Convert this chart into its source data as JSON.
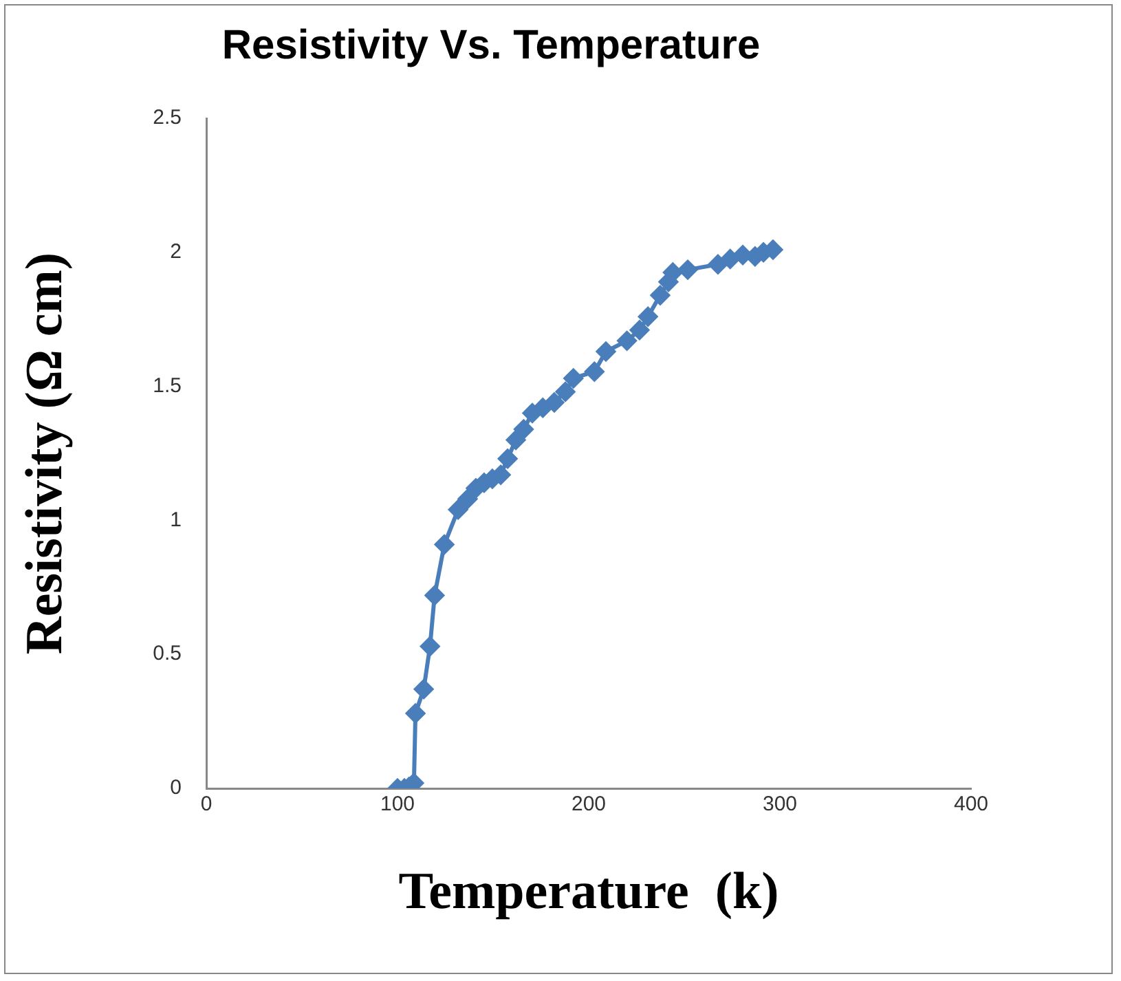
{
  "chart_data": {
    "type": "line",
    "title": "Resistivity Vs. Temperature",
    "xlabel": "Temperature  (k)",
    "ylabel": "Resistivity (Ω cm)",
    "xlim": [
      0,
      400
    ],
    "xticks": [
      0,
      100,
      200,
      300,
      400
    ],
    "ylim": [
      0,
      2.5
    ],
    "yticks": [
      0,
      0.5,
      1,
      1.5,
      2,
      2.5
    ],
    "marker": "diamond",
    "line_style": "solid",
    "series": [
      {
        "color": "#4a7ebb",
        "x": [
          100,
          103.6,
          106,
          108.6,
          109.4,
          113.7,
          117,
          119.4,
          124.5,
          131.7,
          136.7,
          141,
          145.3,
          149.6,
          154,
          157.6,
          161.9,
          166,
          170.5,
          176,
          182,
          187.8,
          192,
          203,
          209,
          220,
          226.6,
          231,
          237.4,
          241.7,
          244,
          251.8,
          267.6,
          274,
          280.6,
          287,
          291.4,
          296.4
        ],
        "values": [
          0,
          0,
          0.005,
          0.02,
          0.28,
          0.37,
          0.53,
          0.72,
          0.91,
          1.04,
          1.08,
          1.12,
          1.14,
          1.155,
          1.17,
          1.23,
          1.3,
          1.34,
          1.4,
          1.42,
          1.44,
          1.48,
          1.53,
          1.555,
          1.63,
          1.67,
          1.71,
          1.76,
          1.84,
          1.89,
          1.925,
          1.935,
          1.955,
          1.975,
          1.99,
          1.985,
          2,
          2.01
        ]
      }
    ]
  }
}
